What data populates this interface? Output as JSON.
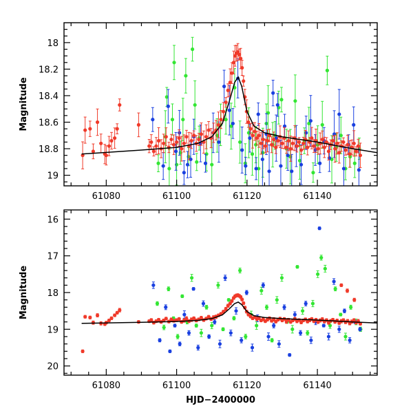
{
  "chart_data": [
    {
      "type": "scatter",
      "panel": "top",
      "xlabel": "",
      "ylabel": "Magnitude",
      "xlim": [
        61068,
        61157
      ],
      "ylim": [
        19.08,
        17.85
      ],
      "y_inverted": true,
      "x_ticks": [
        61080,
        61100,
        61120,
        61140
      ],
      "x_tick_labels": [
        "61080",
        "61100",
        "61120",
        "61140"
      ],
      "y_ticks": [
        18.0,
        18.2,
        18.4,
        18.6,
        18.8,
        19.0
      ],
      "y_tick_labels": [
        "18",
        "18.2",
        "18.4",
        "18.6",
        "18.8",
        "19"
      ],
      "model_curve": {
        "name": "model",
        "color": "#000000",
        "x": [
          61073,
          61090,
          61100,
          61106,
          61110,
          61113,
          61115,
          61116.5,
          61117.5,
          61118.5,
          61120,
          61122,
          61125,
          61130,
          61140,
          61150,
          61157
        ],
        "y": [
          18.84,
          18.81,
          18.79,
          18.76,
          18.71,
          18.61,
          18.44,
          18.3,
          18.26,
          18.33,
          18.52,
          18.63,
          18.68,
          18.71,
          18.75,
          18.8,
          18.83
        ]
      },
      "series": [
        {
          "name": "green",
          "color": "#33e633",
          "x": [
            61094.8,
            61096.8,
            61097.2,
            61097.9,
            61098.8,
            61099.3,
            61100,
            61101.1,
            61101.8,
            61102.6,
            61103.4,
            61104.5,
            61105.2,
            61105.7,
            61106.4,
            61108.5,
            61110,
            61111.5,
            61112.5,
            61114,
            61115.5,
            61116.5,
            61118,
            61119.5,
            61120.5,
            61121.5,
            61122.5,
            61123.3,
            61124.5,
            61125.5,
            61126,
            61127.3,
            61128,
            61129,
            61129.8,
            61131.2,
            61132.3,
            61133.7,
            61135,
            61136.3,
            61137.6,
            61138.8,
            61140.1,
            61141.4,
            61142.8,
            61144.1,
            61145.4,
            61146.7,
            61148,
            61149.3,
            61150.6,
            61151.9
          ],
          "y": [
            18.91,
            18.71,
            18.41,
            18.95,
            18.58,
            18.15,
            18.92,
            18.83,
            18.58,
            18.25,
            18.86,
            18.05,
            18.47,
            18.9,
            18.72,
            18.84,
            18.92,
            18.7,
            18.62,
            18.58,
            18.63,
            18.34,
            18.75,
            18.91,
            18.68,
            18.84,
            18.77,
            18.95,
            18.83,
            18.61,
            18.53,
            18.77,
            18.7,
            18.49,
            18.43,
            18.8,
            18.86,
            18.44,
            18.89,
            18.74,
            18.61,
            18.98,
            18.77,
            18.62,
            18.21,
            18.88,
            18.79,
            18.7,
            18.95,
            18.86,
            18.91,
            18.8
          ]
        },
        {
          "name": "blue",
          "color": "#1a40e0",
          "x": [
            61093.2,
            61096.2,
            61097.6,
            61099.8,
            61100.8,
            61102.1,
            61103.1,
            61104,
            61104.9,
            61106.8,
            61108.2,
            61110.4,
            61112,
            61113.5,
            61115,
            61116,
            61117.4,
            61118.6,
            61119.6,
            61120.8,
            61122.6,
            61123.2,
            61124.4,
            61125.5,
            61126.3,
            61127.4,
            61128.3,
            61128.7,
            61129.6,
            61130.7,
            61131.6,
            61132.7,
            61134,
            61135.4,
            61136.8,
            61138.1,
            61139.4,
            61140.7,
            61141.9,
            61143.4,
            61144.8,
            61146.2,
            61147.5,
            61148.9,
            61150.3,
            61151.8
          ],
          "y": [
            18.58,
            18.93,
            18.48,
            18.82,
            18.68,
            18.98,
            18.92,
            18.88,
            18.71,
            18.76,
            18.91,
            18.68,
            18.75,
            18.33,
            18.51,
            18.61,
            18.27,
            18.81,
            18.93,
            18.72,
            18.95,
            18.54,
            18.88,
            18.69,
            18.97,
            18.38,
            18.72,
            18.47,
            18.93,
            18.63,
            18.85,
            18.97,
            18.78,
            18.92,
            18.68,
            18.59,
            18.81,
            18.91,
            18.74,
            18.87,
            18.69,
            18.54,
            18.95,
            18.77,
            18.62,
            18.96
          ]
        },
        {
          "name": "red",
          "color": "#f03a2a",
          "x": [
            61073.3,
            61074,
            61075.4,
            61076.3,
            61077.5,
            61078.5,
            61079.6,
            61080,
            61080.8,
            61081.5,
            61082.4,
            61083.1,
            61083.8,
            61089.2,
            61092.2,
            61092.8,
            61093.5,
            61094.2,
            61094.9,
            61095.6,
            61096.3,
            61097,
            61097.8,
            61098.5,
            61099.2,
            61100,
            61100.7,
            61101.4,
            61102.1,
            61102.8,
            61103.5,
            61104.2,
            61104.9,
            61105.6,
            61106.3,
            61107,
            61107.7,
            61108.4,
            61109.1,
            61109.8,
            61110.5,
            61111.2,
            61111.9,
            61112.6,
            61113.3,
            61114,
            61114.6,
            61115.2,
            61115.7,
            61116.2,
            61116.6,
            61117,
            61117.4,
            61117.8,
            61118.2,
            61118.6,
            61119,
            61119.4,
            61119.9,
            61120.4,
            61121,
            61121.6,
            61122.2,
            61122.8,
            61123.4,
            61124,
            61124.6,
            61125.2,
            61125.8,
            61126.4,
            61127,
            61127.6,
            61128.2,
            61128.8,
            61129.4,
            61130,
            61130.6,
            61131.2,
            61131.8,
            61132.4,
            61133,
            61133.6,
            61134.2,
            61134.8,
            61135.4,
            61136,
            61136.6,
            61137.2,
            61137.8,
            61138.4,
            61139,
            61139.6,
            61140.2,
            61140.8,
            61141.4,
            61142,
            61142.6,
            61143.2,
            61143.8,
            61144.4,
            61145,
            61145.6,
            61146.2,
            61146.8,
            61147.4,
            61148,
            61148.6,
            61149.2,
            61149.8,
            61150.4,
            61151,
            61151.6,
            61152.2
          ],
          "y": [
            18.85,
            18.66,
            18.65,
            18.82,
            18.6,
            18.76,
            18.84,
            18.85,
            18.78,
            18.74,
            18.72,
            18.65,
            18.47,
            18.62,
            18.78,
            18.75,
            18.82,
            18.78,
            18.74,
            18.8,
            18.76,
            18.71,
            18.79,
            18.73,
            18.77,
            18.75,
            18.72,
            18.8,
            18.76,
            18.71,
            18.78,
            18.74,
            18.7,
            18.76,
            18.73,
            18.69,
            18.75,
            18.71,
            18.66,
            18.72,
            18.68,
            18.66,
            18.62,
            18.58,
            18.52,
            18.45,
            18.36,
            18.3,
            18.23,
            18.15,
            18.1,
            18.08,
            18.07,
            18.09,
            18.12,
            18.19,
            18.29,
            18.41,
            18.52,
            18.6,
            18.65,
            18.7,
            18.67,
            18.72,
            18.7,
            18.76,
            18.73,
            18.78,
            18.74,
            18.7,
            18.77,
            18.73,
            18.79,
            18.74,
            18.71,
            18.76,
            18.72,
            18.79,
            18.74,
            18.8,
            18.76,
            18.72,
            18.78,
            18.75,
            18.81,
            18.76,
            18.73,
            18.79,
            18.75,
            18.72,
            18.78,
            18.74,
            18.8,
            18.76,
            18.73,
            18.79,
            18.75,
            18.82,
            18.77,
            18.74,
            18.8,
            18.76,
            18.83,
            18.78,
            18.75,
            18.81,
            18.77,
            18.84,
            18.79,
            18.76,
            18.82,
            18.78,
            18.85
          ]
        }
      ]
    },
    {
      "type": "scatter",
      "panel": "bottom",
      "xlabel": "HJD−2400000",
      "ylabel": "Magnitude",
      "xlim": [
        61068,
        61157
      ],
      "ylim": [
        20.25,
        15.75
      ],
      "y_inverted": true,
      "x_ticks": [
        61080,
        61100,
        61120,
        61140
      ],
      "x_tick_labels": [
        "61080",
        "61100",
        "61120",
        "61140"
      ],
      "y_ticks": [
        16,
        17,
        18,
        19,
        20
      ],
      "y_tick_labels": [
        "16",
        "17",
        "18",
        "19",
        "20"
      ],
      "model_curve": {
        "name": "model",
        "color": "#000000",
        "x": [
          61073,
          61090,
          61100,
          61106,
          61110,
          61113,
          61115,
          61116.5,
          61117.5,
          61118.5,
          61120,
          61122,
          61125,
          61130,
          61140,
          61150,
          61157
        ],
        "y": [
          18.84,
          18.81,
          18.79,
          18.76,
          18.71,
          18.61,
          18.44,
          18.3,
          18.26,
          18.33,
          18.52,
          18.63,
          18.68,
          18.71,
          18.75,
          18.8,
          18.83
        ]
      },
      "series": [
        {
          "name": "green",
          "color": "#33e633",
          "x": [
            61094.5,
            61096.4,
            61097.7,
            61099.1,
            61100.3,
            61101.6,
            61103,
            61104.3,
            61105.6,
            61107,
            61108.5,
            61110,
            61111.8,
            61113.2,
            61114.8,
            61116.3,
            61118,
            61119.6,
            61121.2,
            61122.7,
            61124.1,
            61125.6,
            61127.1,
            61128.5,
            61129.9,
            61131.4,
            61132.9,
            61134.3,
            61135.8,
            61137.2,
            61138.7,
            61140.1,
            61141.1,
            61142.2,
            61143.6,
            61145.1,
            61146.6,
            61148,
            61149.5,
            61151,
            61152.3
          ],
          "y": [
            18.3,
            18.95,
            17.9,
            18.7,
            19.2,
            18.1,
            18.8,
            17.6,
            18.9,
            19.1,
            18.4,
            18.9,
            17.8,
            19.0,
            18.2,
            18.7,
            17.4,
            19.2,
            18.6,
            18.9,
            17.95,
            18.4,
            19.3,
            18.2,
            17.6,
            18.8,
            19.0,
            17.3,
            18.5,
            19.1,
            18.3,
            17.5,
            17.05,
            17.35,
            18.9,
            17.9,
            18.6,
            19.2,
            18.4,
            18.8,
            19.0
          ]
        },
        {
          "name": "blue",
          "color": "#1a40e0",
          "x": [
            61093.4,
            61095.2,
            61096.9,
            61098.1,
            61099.5,
            61100.9,
            61102.2,
            61103.5,
            61104.8,
            61106.1,
            61107.6,
            61109.2,
            61110.8,
            61112.3,
            61113.8,
            61115.4,
            61116.9,
            61118.4,
            61119.9,
            61121.5,
            61123,
            61124.6,
            61126.1,
            61127.6,
            61129.1,
            61130.6,
            61132.1,
            61133.6,
            61135.2,
            61136.7,
            61138.2,
            61139.5,
            61140.6,
            61141.8,
            61143.2,
            61144.7,
            61146.2,
            61147.7,
            61149.2,
            61150.7,
            61152.1
          ],
          "y": [
            17.8,
            19.3,
            18.4,
            19.6,
            18.9,
            19.4,
            18.6,
            19.1,
            17.9,
            19.5,
            18.3,
            19.2,
            18.8,
            19.4,
            17.6,
            19.1,
            18.5,
            19.3,
            18.0,
            19.5,
            18.7,
            17.8,
            19.2,
            18.9,
            19.4,
            18.4,
            19.7,
            18.6,
            19.1,
            18.3,
            19.3,
            18.8,
            16.25,
            18.9,
            19.2,
            17.7,
            19.0,
            18.5,
            19.3,
            18.8,
            19.0
          ]
        },
        {
          "name": "red",
          "color": "#f03a2a",
          "x": [
            61073.3,
            61074,
            61075.4,
            61076.3,
            61077.5,
            61078.5,
            61079.6,
            61080,
            61080.8,
            61081.5,
            61082.4,
            61083.1,
            61083.8,
            61089.2,
            61092.2,
            61092.8,
            61093.5,
            61094.2,
            61094.9,
            61095.6,
            61096.3,
            61097,
            61097.8,
            61098.5,
            61099.2,
            61100,
            61100.7,
            61101.4,
            61102.1,
            61102.8,
            61103.5,
            61104.2,
            61104.9,
            61105.6,
            61106.3,
            61107,
            61107.7,
            61108.4,
            61109.1,
            61109.8,
            61110.5,
            61111.2,
            61111.9,
            61112.6,
            61113.3,
            61114,
            61114.6,
            61115.2,
            61115.7,
            61116.2,
            61116.6,
            61117,
            61117.4,
            61117.8,
            61118.2,
            61118.6,
            61119,
            61119.4,
            61119.9,
            61120.4,
            61121,
            61121.6,
            61122.2,
            61122.8,
            61123.4,
            61124,
            61124.6,
            61125.2,
            61125.8,
            61126.4,
            61127,
            61127.6,
            61128.2,
            61128.8,
            61129.4,
            61130,
            61130.6,
            61131.2,
            61131.8,
            61132.4,
            61133,
            61133.6,
            61134.2,
            61134.8,
            61135.4,
            61136,
            61136.6,
            61137.2,
            61137.8,
            61138.4,
            61139,
            61139.6,
            61140.2,
            61140.8,
            61141.4,
            61142,
            61142.6,
            61143.2,
            61143.8,
            61144.4,
            61145,
            61145.6,
            61146.2,
            61146.8,
            61147.4,
            61148,
            61148.6,
            61149.2,
            61149.8,
            61150.4,
            61151,
            61151.6,
            61152.2,
            61146.8,
            61148.5,
            61150.5
          ],
          "y": [
            19.6,
            18.66,
            18.68,
            18.82,
            18.62,
            18.84,
            18.86,
            18.82,
            18.76,
            18.7,
            18.62,
            18.55,
            18.48,
            18.8,
            18.78,
            18.75,
            18.82,
            18.78,
            18.74,
            18.8,
            18.76,
            18.71,
            18.79,
            18.73,
            18.77,
            18.75,
            18.72,
            18.8,
            18.76,
            18.71,
            18.78,
            18.74,
            18.7,
            18.76,
            18.73,
            18.69,
            18.75,
            18.71,
            18.66,
            18.72,
            18.68,
            18.66,
            18.62,
            18.58,
            18.52,
            18.45,
            18.36,
            18.3,
            18.23,
            18.15,
            18.1,
            18.08,
            18.07,
            18.09,
            18.12,
            18.19,
            18.29,
            18.41,
            18.52,
            18.6,
            18.65,
            18.7,
            18.67,
            18.72,
            18.7,
            18.76,
            18.73,
            18.78,
            18.74,
            18.7,
            18.77,
            18.73,
            18.79,
            18.74,
            18.71,
            18.76,
            18.72,
            18.79,
            18.74,
            18.8,
            18.76,
            18.72,
            18.78,
            18.75,
            18.81,
            18.76,
            18.73,
            18.79,
            18.75,
            18.72,
            18.78,
            18.74,
            18.8,
            18.76,
            18.73,
            18.79,
            18.75,
            18.82,
            18.77,
            18.74,
            18.8,
            18.76,
            18.83,
            18.78,
            18.75,
            18.81,
            18.77,
            18.84,
            18.79,
            18.76,
            18.82,
            18.78,
            18.85,
            17.8,
            17.95,
            18.2
          ]
        }
      ]
    }
  ]
}
